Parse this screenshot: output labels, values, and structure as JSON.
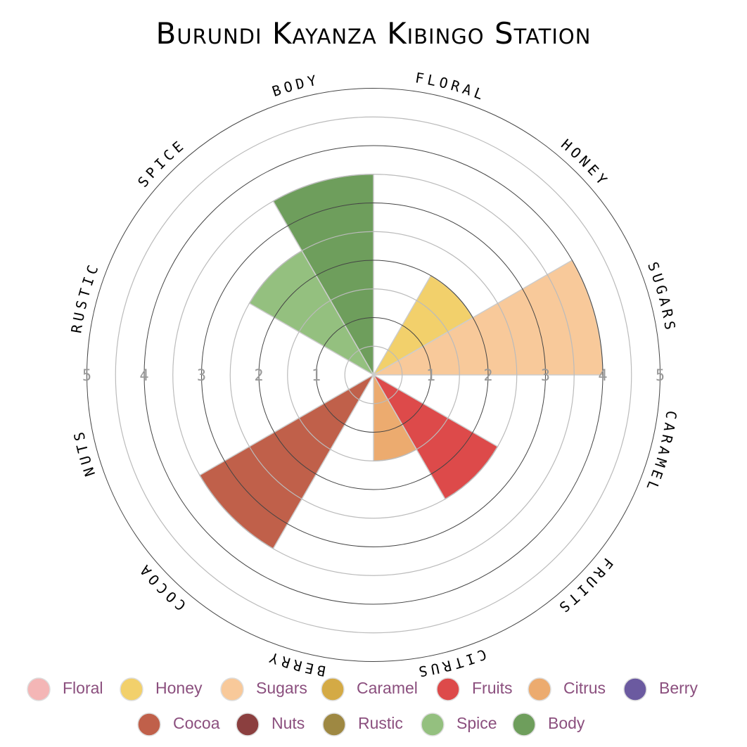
{
  "chart_data": {
    "type": "polar-area",
    "title": "Burundi Kayanza Kibingo Station",
    "categories": [
      "Floral",
      "Honey",
      "Sugars",
      "Caramel",
      "Fruits",
      "Citrus",
      "Berry",
      "Cocoa",
      "Nuts",
      "Rustic",
      "Spice",
      "Body"
    ],
    "values": [
      0,
      2,
      4,
      0,
      2.5,
      1.5,
      0,
      3.5,
      0,
      0,
      2.5,
      3.5
    ],
    "colors": [
      "#f4b6b6",
      "#f2d06b",
      "#f8c99a",
      "#d4aa45",
      "#dd4a4a",
      "#ecab6f",
      "#6b5aa0",
      "#c0604a",
      "#8b3f3f",
      "#9e8842",
      "#94c07f",
      "#6e9e5c"
    ],
    "ylim": [
      0,
      5
    ],
    "yticks": [
      1,
      2,
      3,
      4,
      5
    ]
  }
}
